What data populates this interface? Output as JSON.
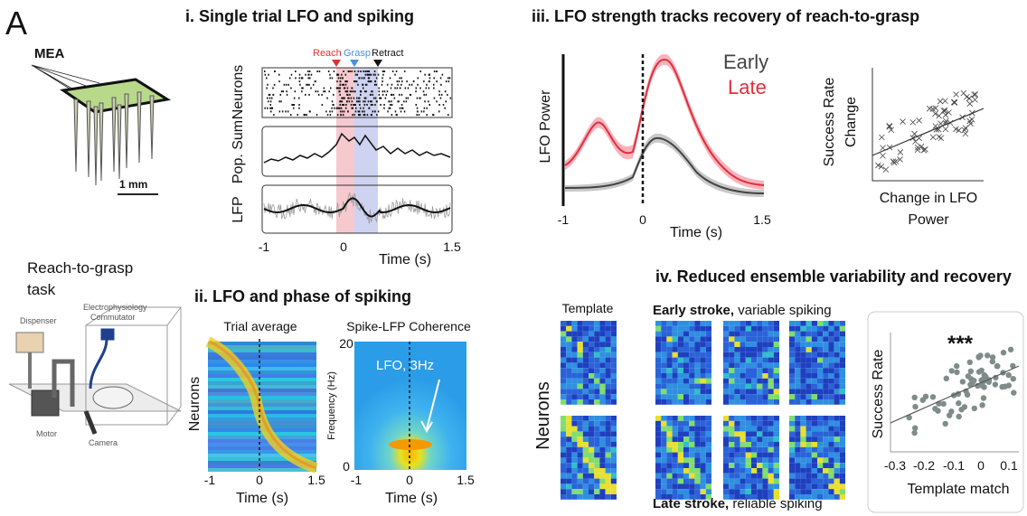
{
  "panel_label": "A",
  "mea": {
    "label": "MEA",
    "scale": "1 mm"
  },
  "task": {
    "title_lines": [
      "Reach-to-grasp",
      "task"
    ],
    "parts": [
      "Dispenser",
      "Electrophysiology",
      "Commutator",
      "Motor",
      "Camera"
    ]
  },
  "panel_i": {
    "title": "i. Single trial LFO and spiking",
    "events": [
      "Reach",
      "Grasp",
      "Retract"
    ],
    "rows": [
      "Neurons",
      "Pop. Sum",
      "LFP"
    ],
    "xticks": [
      -1,
      0,
      1.5
    ],
    "xlabel": "Time (s)"
  },
  "panel_ii": {
    "title": "ii. LFO and phase of spiking",
    "trial_average": {
      "title": "Trial average",
      "ylabel": "Neurons",
      "xticks": [
        -1,
        0,
        1.5
      ],
      "xlabel": "Time (s)"
    },
    "coherence": {
      "title": "Spike-LFP Coherence",
      "ylabel": "Frequency (Hz)",
      "yticks": [
        20,
        0
      ],
      "annotation": "LFO, 3Hz",
      "xticks": [
        -1,
        0,
        1.5
      ],
      "xlabel": "Time (s)"
    }
  },
  "panel_iii": {
    "title": "iii. LFO strength tracks recovery of reach-to-grasp",
    "legend": [
      "Early",
      "Late"
    ],
    "ylabel": "LFO Power",
    "xticks": [
      -1,
      0,
      1.5
    ],
    "xlabel": "Time (s)",
    "scatter": {
      "ylabel_lines": [
        "Success Rate",
        "Change"
      ],
      "xlabel_lines": [
        "Change in LFO",
        "Power"
      ]
    }
  },
  "panel_iv": {
    "title": "iv. Reduced ensemble variability and recovery",
    "template": "Template",
    "ylabel": "Neurons",
    "early": {
      "bold": "Early stroke,",
      "rest": " variable spiking"
    },
    "late": {
      "bold": "Late stroke,",
      "rest": " reliable spiking"
    },
    "scatter": {
      "annotation": "***",
      "ylabel": "Success Rate",
      "xticks": [
        -0.3,
        -0.2,
        -0.1,
        0,
        0.1
      ],
      "xlabel": "Template match"
    }
  }
}
